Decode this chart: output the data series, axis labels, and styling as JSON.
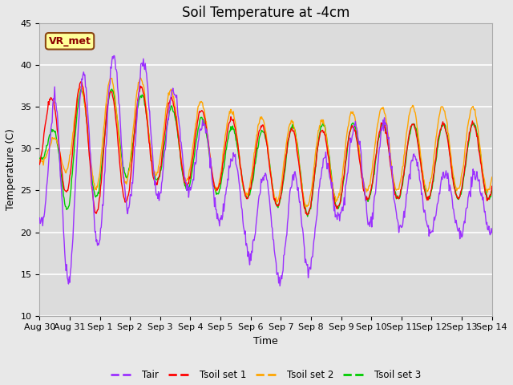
{
  "title": "Soil Temperature at -4cm",
  "xlabel": "Time",
  "ylabel": "Temperature (C)",
  "ylim": [
    10,
    45
  ],
  "tick_labels": [
    "Aug 30",
    "Aug 31",
    "Sep 1",
    "Sep 2",
    "Sep 3",
    "Sep 4",
    "Sep 5",
    "Sep 6",
    "Sep 7",
    "Sep 8",
    "Sep 9",
    "Sep 10",
    "Sep 11",
    "Sep 12",
    "Sep 13",
    "Sep 14"
  ],
  "colors": {
    "Tair": "#9B30FF",
    "Tsoil1": "#FF0000",
    "Tsoil2": "#FFA500",
    "Tsoil3": "#00CC00"
  },
  "legend_labels": [
    "Tair",
    "Tsoil set 1",
    "Tsoil set 2",
    "Tsoil set 3"
  ],
  "annotation_text": "VR_met",
  "annotation_box_color": "#FFFF99",
  "annotation_border_color": "#8B4513",
  "background_color": "#E8E8E8",
  "plot_bg_color": "#DCDCDC",
  "grid_color": "#FFFFFF",
  "title_fontsize": 12,
  "label_fontsize": 9,
  "tick_fontsize": 8
}
